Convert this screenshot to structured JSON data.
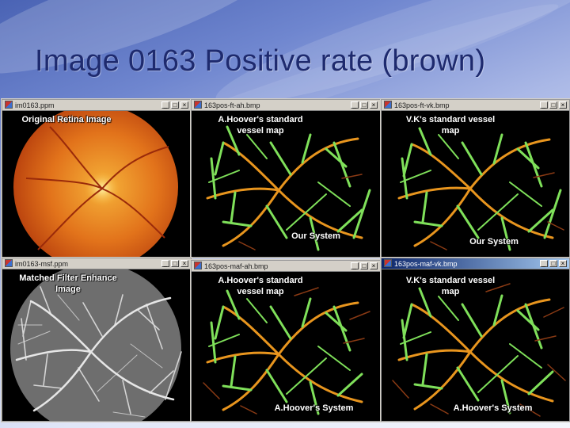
{
  "slide": {
    "title": "Image 0163 Positive rate (brown)"
  },
  "windows": [
    {
      "title": "im0163.ppm",
      "kind": "retina",
      "active": false,
      "labels": [
        "Original Retina Image"
      ]
    },
    {
      "title": "163pos-ft-ah.bmp",
      "kind": "vessel",
      "active": false,
      "labels": [
        "A.Hoover's standard vessel map",
        "Our System"
      ]
    },
    {
      "title": "163pos-ft-vk.bmp",
      "kind": "vessel",
      "active": false,
      "labels": [
        "V.K's standard vessel map",
        "Our System"
      ]
    },
    {
      "title": "im0163-msf.ppm",
      "kind": "filter",
      "active": false,
      "labels": [
        "Matched Filter Enhance Image"
      ]
    },
    {
      "title": "163pos-maf-ah.bmp",
      "kind": "vessel",
      "active": false,
      "labels": [
        "A.Hoover's standard vessel map",
        "A.Hoover's System"
      ]
    },
    {
      "title": "163pos-maf-vk.bmp",
      "kind": "vessel",
      "active": true,
      "labels": [
        "V.K's standard vessel map",
        "A.Hoover's System"
      ]
    }
  ],
  "window_controls": {
    "minimize": "_",
    "maximize": "□",
    "close": "×"
  },
  "colors": {
    "vessel_green": "#7fe05a",
    "vessel_orange": "#e8951e",
    "positive_brown": "#8a3a14",
    "retina_center": "#f6b33a",
    "retina_edge": "#b33a0c",
    "title_text": "#1e2a6e"
  },
  "icons": {
    "window_icon": "image-file-icon"
  }
}
